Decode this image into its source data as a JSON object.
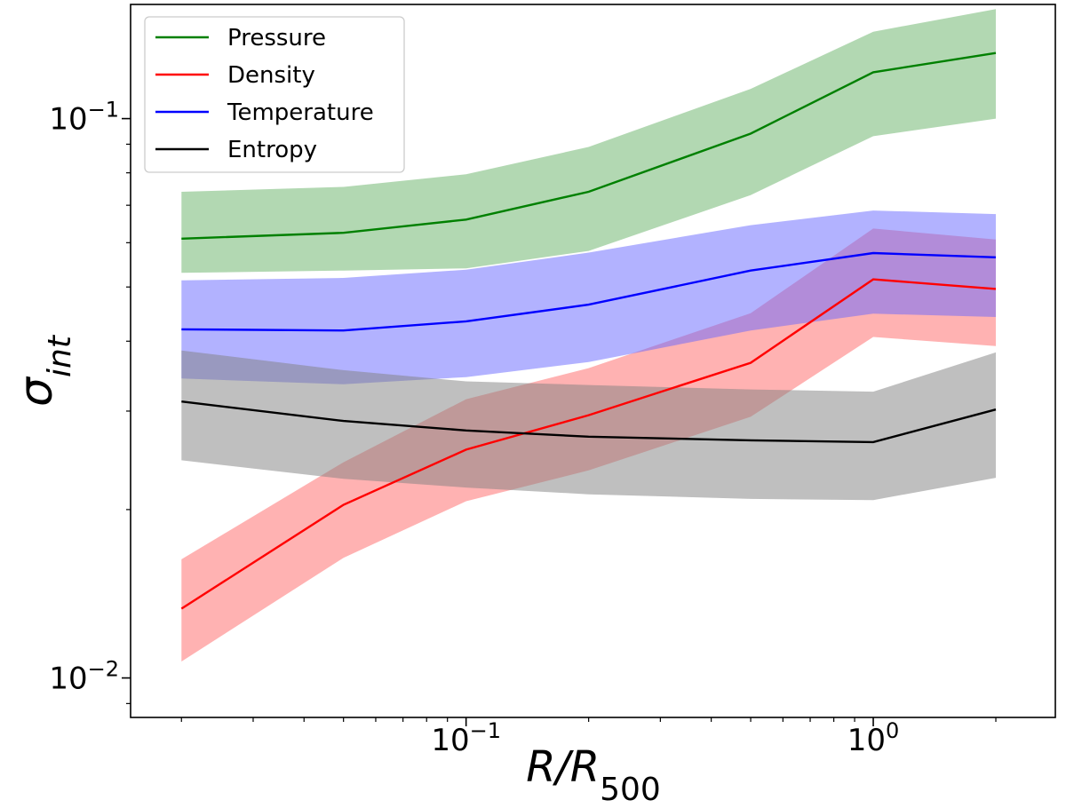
{
  "chart_data": {
    "type": "line",
    "xscale": "log",
    "yscale": "log",
    "xlim": [
      0.015,
      2.8
    ],
    "ylim": [
      0.0085,
      0.16
    ],
    "x": [
      0.02,
      0.05,
      0.1,
      0.2,
      0.5,
      1.0,
      2.0
    ],
    "xlabel": {
      "main": "R/R",
      "sub": "500"
    },
    "ylabel": {
      "main": "σ",
      "sub": "int"
    },
    "x_ticks": [
      {
        "value": 0.1,
        "base": "10",
        "exp": "−1"
      },
      {
        "value": 1.0,
        "base": "10",
        "exp": "0"
      }
    ],
    "y_ticks": [
      {
        "value": 0.01,
        "base": "10",
        "exp": "−2"
      },
      {
        "value": 0.1,
        "base": "10",
        "exp": "−1"
      }
    ],
    "legend_position": "top-left",
    "series": [
      {
        "name": "Pressure",
        "color": "#008000",
        "band_color": "#66b266",
        "values": [
          0.061,
          0.0625,
          0.066,
          0.074,
          0.094,
          0.121,
          0.131
        ],
        "lower": [
          0.053,
          0.0535,
          0.054,
          0.058,
          0.073,
          0.093,
          0.1
        ],
        "upper": [
          0.074,
          0.0755,
          0.0795,
          0.089,
          0.113,
          0.143,
          0.157
        ]
      },
      {
        "name": "Density",
        "color": "#ff0000",
        "band_color": "#ff6666",
        "values": [
          0.0133,
          0.0204,
          0.0256,
          0.0295,
          0.0366,
          0.0516,
          0.0496
        ],
        "lower": [
          0.0107,
          0.0164,
          0.0207,
          0.0235,
          0.0293,
          0.0407,
          0.0392
        ],
        "upper": [
          0.0163,
          0.0243,
          0.0315,
          0.0358,
          0.0449,
          0.0636,
          0.0608
        ]
      },
      {
        "name": "Temperature",
        "color": "#0000ff",
        "band_color": "#6666ff",
        "values": [
          0.042,
          0.0418,
          0.0434,
          0.0465,
          0.0535,
          0.0575,
          0.0565
        ],
        "lower": [
          0.0343,
          0.0335,
          0.0345,
          0.0367,
          0.0418,
          0.0448,
          0.0442
        ],
        "upper": [
          0.0514,
          0.0519,
          0.0537,
          0.0576,
          0.0645,
          0.0685,
          0.0675
        ]
      },
      {
        "name": "Entropy",
        "color": "#000000",
        "band_color": "#808080",
        "values": [
          0.0312,
          0.0288,
          0.0277,
          0.027,
          0.0266,
          0.0264,
          0.0302
        ],
        "lower": [
          0.0245,
          0.0227,
          0.0219,
          0.0213,
          0.0209,
          0.0208,
          0.0228
        ],
        "upper": [
          0.0385,
          0.0355,
          0.0339,
          0.0334,
          0.0328,
          0.0325,
          0.0382
        ]
      }
    ]
  }
}
